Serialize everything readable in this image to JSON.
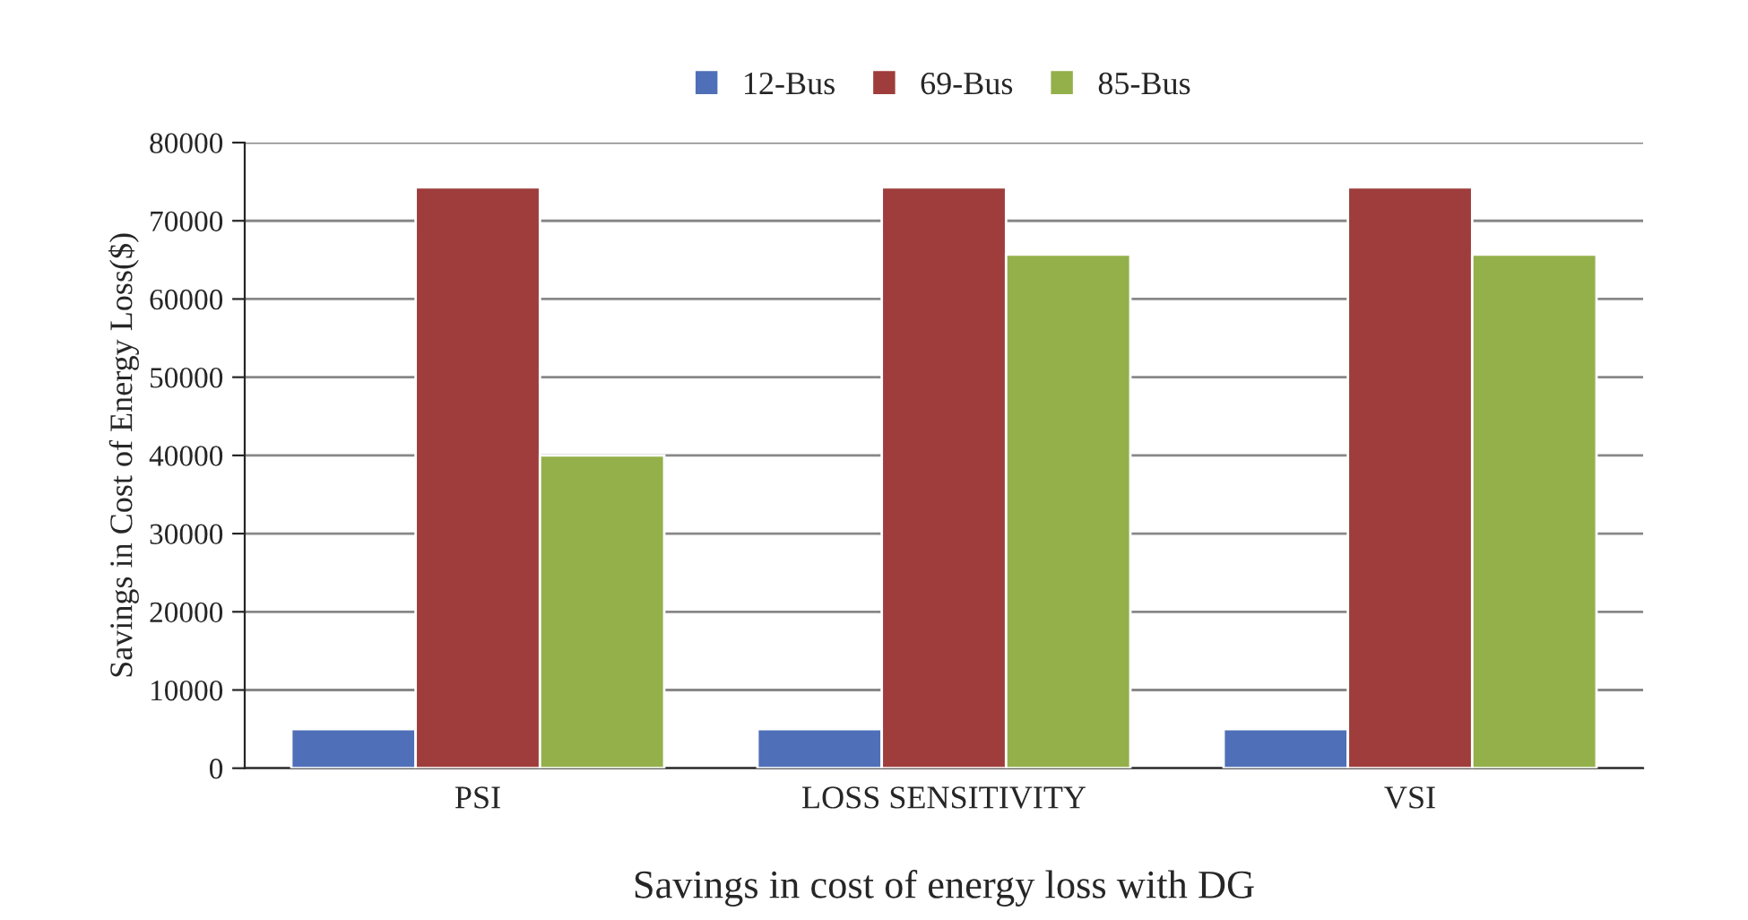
{
  "chart_data": {
    "type": "bar",
    "xlabel": "Savings in cost of energy loss with DG",
    "ylabel": "Savings in Cost of Energy Loss($)",
    "categories": [
      "PSI",
      "LOSS SENSITIVITY",
      "VSI"
    ],
    "series": [
      {
        "name": "12-Bus",
        "color": "#4f6fb8",
        "values": [
          5000,
          5000,
          5000
        ]
      },
      {
        "name": "69-Bus",
        "color": "#9e3d3b",
        "values": [
          74300,
          74300,
          74300
        ]
      },
      {
        "name": "85-Bus",
        "color": "#93b04b",
        "values": [
          40000,
          65700,
          65700
        ]
      }
    ],
    "ylim": [
      0,
      80000
    ],
    "yticks": [
      0,
      10000,
      20000,
      30000,
      40000,
      50000,
      60000,
      70000,
      80000
    ],
    "grid": "y",
    "legend": "top"
  }
}
